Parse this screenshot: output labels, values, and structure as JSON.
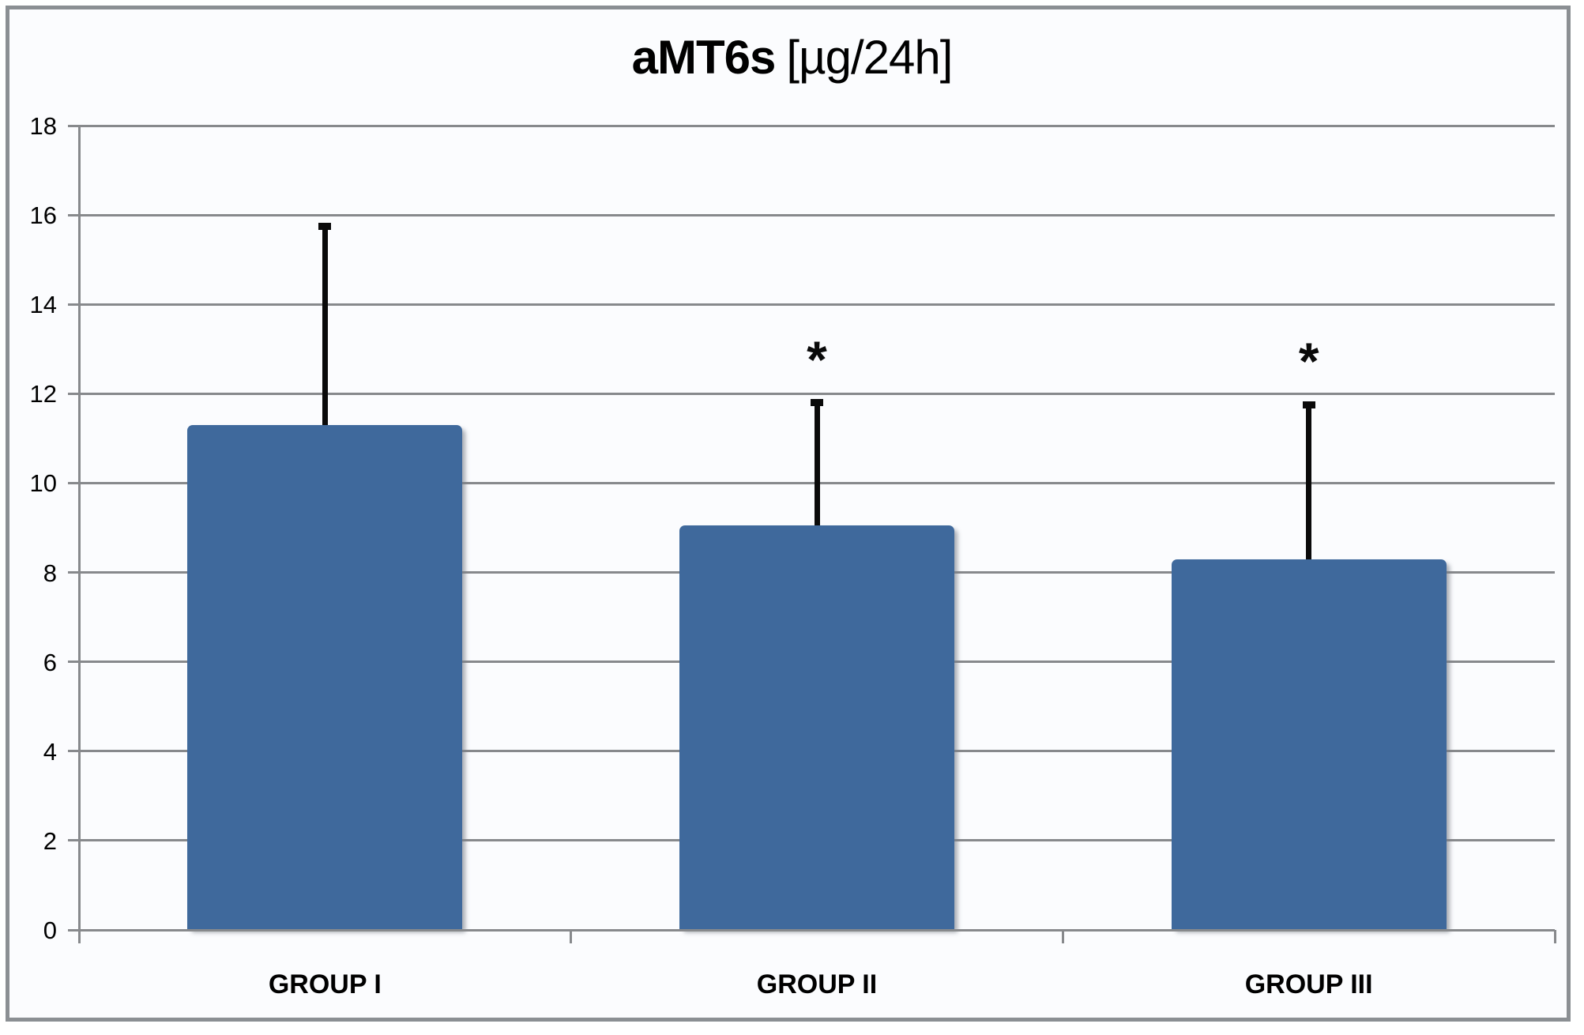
{
  "title": {
    "name": "aMT6s",
    "unit": "[µg/24h]"
  },
  "chart_data": {
    "type": "bar",
    "title": "aMT6s [µg/24h]",
    "xlabel": "",
    "ylabel": "",
    "categories": [
      "GROUP I",
      "GROUP II",
      "GROUP III"
    ],
    "series": [
      {
        "name": "aMT6s",
        "values": [
          11.3,
          9.05,
          8.3
        ]
      }
    ],
    "error_bars": {
      "direction": "upper-only",
      "upper_tip_values": [
        15.75,
        11.8,
        11.75
      ],
      "magnitudes": [
        4.45,
        2.75,
        3.45
      ]
    },
    "significance_markers": [
      "",
      "*",
      "*"
    ],
    "ylim": [
      0,
      18
    ],
    "yticks": [
      0,
      2,
      4,
      6,
      8,
      10,
      12,
      14,
      16,
      18
    ],
    "grid": "horizontal",
    "legend": "none",
    "colors": {
      "bar_fill": "#3f699c",
      "bar_bevel_highlight": "#82ade8",
      "grid_line": "#87898c",
      "frame_border": "#8b8f93",
      "panel_background": "#fbfcfe",
      "text": "#000000",
      "error_bar": "#0a0a0a"
    }
  }
}
